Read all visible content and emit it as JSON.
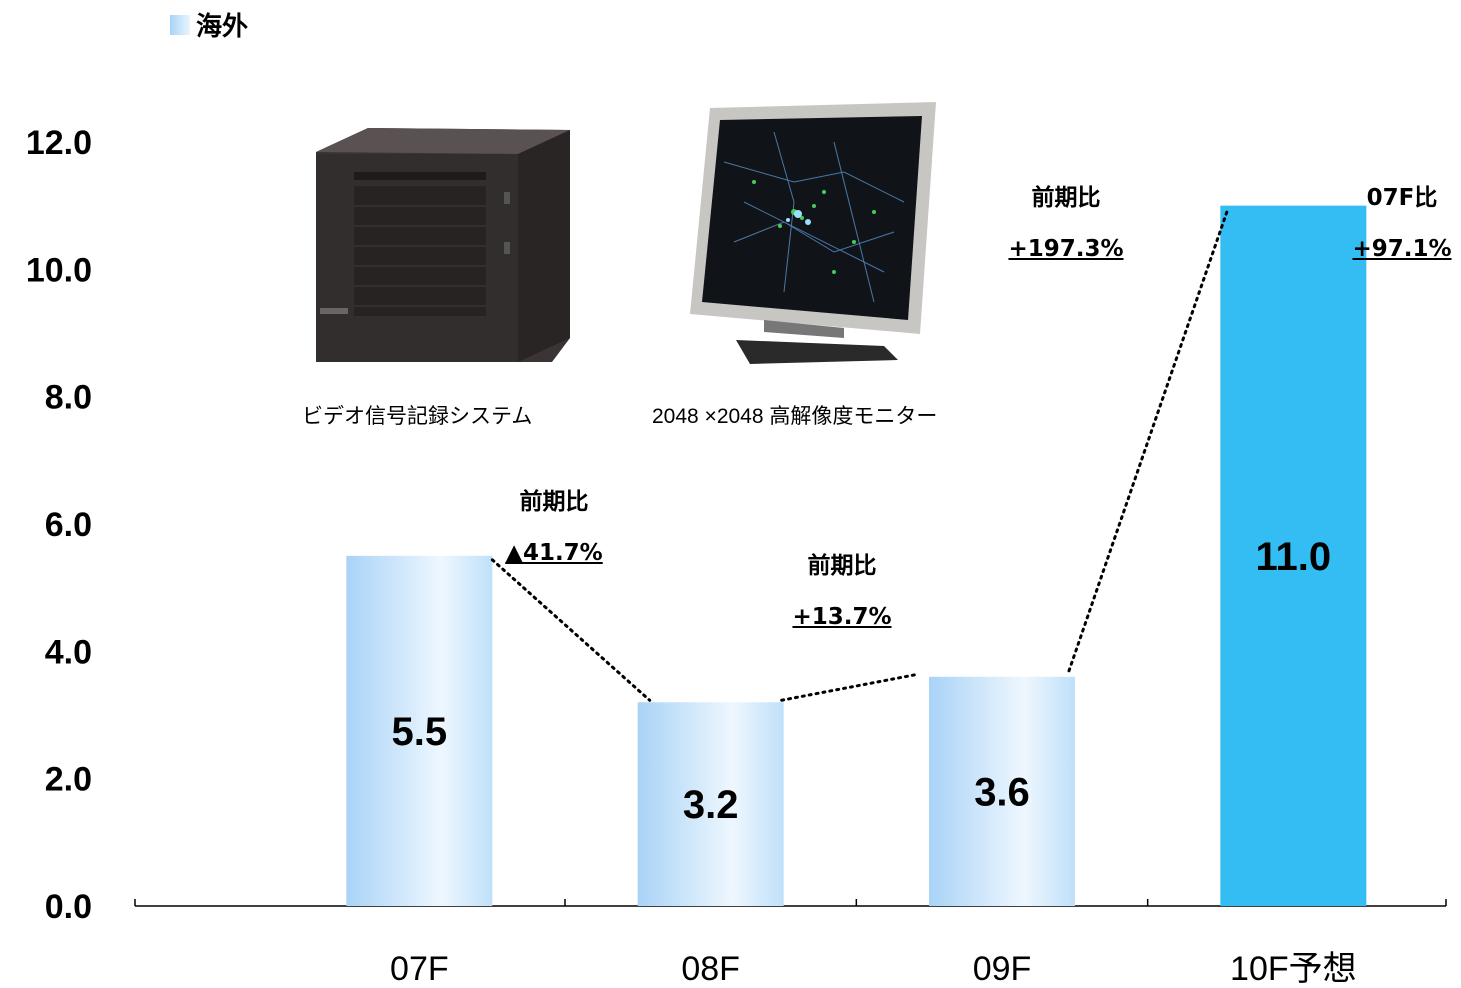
{
  "legend": {
    "label": "海外",
    "color": "#a9d3f7"
  },
  "images": [
    {
      "name": "video-recorder-photo",
      "caption": "ビデオ信号記録システム"
    },
    {
      "name": "monitor-photo",
      "caption": "2048 ×2048 高解像度モニター"
    }
  ],
  "annotations": [
    {
      "title": "前期比",
      "value": "▲41.7%"
    },
    {
      "title": "前期比",
      "value": "+13.7%"
    },
    {
      "title": "前期比",
      "value": "+197.3%"
    },
    {
      "title": "07F比",
      "value": "+97.1%"
    }
  ],
  "chart_data": {
    "type": "bar",
    "categories": [
      "07F",
      "08F",
      "09F",
      "10F予想"
    ],
    "values": [
      5.5,
      3.2,
      3.6,
      11.0
    ],
    "value_labels": [
      "5.5",
      "3.2",
      "3.6",
      "11.0"
    ],
    "yticks": [
      "0.0",
      "2.0",
      "4.0",
      "6.0",
      "8.0",
      "10.0",
      "12.0"
    ],
    "ylim": [
      0,
      12
    ],
    "grid": false,
    "bar_colors": [
      "#a9d3f7",
      "#a9d3f7",
      "#a9d3f7",
      "#33bdf2"
    ],
    "forecast_color": "#33bdf2"
  }
}
